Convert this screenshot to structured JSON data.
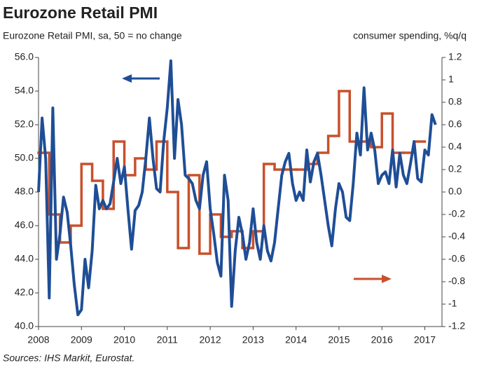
{
  "chart_data": {
    "type": "line",
    "title": "Eurozone Retail PMI",
    "subtitle": "Eurozone Retail PMI, sa, 50 = no change",
    "y2label": "consumer spending, %q/q",
    "source": "Sources: IHS Markit, Eurostat.",
    "xlim": [
      2008,
      2017.4
    ],
    "xticks": [
      2008,
      2009,
      2010,
      2011,
      2012,
      2013,
      2014,
      2015,
      2016,
      2017
    ],
    "ylim": [
      40,
      56
    ],
    "yticks": [
      {
        "value": 40,
        "label": "40.0"
      },
      {
        "value": 42,
        "label": "42.0"
      },
      {
        "value": 44,
        "label": "44.0"
      },
      {
        "value": 46,
        "label": "46.0"
      },
      {
        "value": 48,
        "label": "48.0"
      },
      {
        "value": 50,
        "label": "50.0"
      },
      {
        "value": 52,
        "label": "52.0"
      },
      {
        "value": 54,
        "label": "54.0"
      },
      {
        "value": 56,
        "label": "56.0"
      }
    ],
    "y2lim": [
      -1.2,
      1.2
    ],
    "y2ticks": [
      -1.2,
      -1,
      -0.8,
      -0.6,
      -0.4,
      -0.2,
      {
        "value": 0,
        "label": "0.0"
      },
      0.2,
      0.4,
      0.6,
      0.8,
      1,
      1.2
    ],
    "grid": false,
    "series": [
      {
        "color": "#1f4e96",
        "axis": "y",
        "x": [
          2008,
          2008.083,
          2008.167,
          2008.25,
          2008.333,
          2008.417,
          2008.5,
          2008.583,
          2008.667,
          2008.75,
          2008.833,
          2008.917,
          2009,
          2009.083,
          2009.167,
          2009.25,
          2009.333,
          2009.417,
          2009.5,
          2009.583,
          2009.667,
          2009.75,
          2009.833,
          2009.917,
          2010,
          2010.083,
          2010.167,
          2010.25,
          2010.333,
          2010.417,
          2010.5,
          2010.583,
          2010.667,
          2010.75,
          2010.833,
          2010.917,
          2011,
          2011.083,
          2011.167,
          2011.25,
          2011.333,
          2011.417,
          2011.5,
          2011.583,
          2011.667,
          2011.75,
          2011.833,
          2011.917,
          2012,
          2012.083,
          2012.167,
          2012.25,
          2012.333,
          2012.417,
          2012.5,
          2012.583,
          2012.667,
          2012.75,
          2012.833,
          2012.917,
          2013,
          2013.083,
          2013.167,
          2013.25,
          2013.333,
          2013.417,
          2013.5,
          2013.583,
          2013.667,
          2013.75,
          2013.833,
          2013.917,
          2014,
          2014.083,
          2014.167,
          2014.25,
          2014.333,
          2014.417,
          2014.5,
          2014.583,
          2014.667,
          2014.75,
          2014.833,
          2014.917,
          2015,
          2015.083,
          2015.167,
          2015.25,
          2015.333,
          2015.417,
          2015.5,
          2015.583,
          2015.667,
          2015.75,
          2015.833,
          2015.917,
          2016,
          2016.083,
          2016.167,
          2016.25,
          2016.333,
          2016.417,
          2016.5,
          2016.583,
          2016.667,
          2016.75,
          2016.833,
          2016.917,
          2017,
          2017.083,
          2017.167,
          2017.25
        ],
        "values": [
          48.0,
          52.4,
          50.0,
          41.7,
          53.0,
          44.0,
          45.5,
          47.7,
          46.8,
          44.8,
          42.5,
          40.7,
          41.0,
          44.0,
          42.3,
          44.5,
          48.4,
          47.0,
          47.5,
          47.0,
          47.3,
          48.6,
          50.0,
          48.5,
          49.5,
          47.0,
          44.6,
          46.9,
          47.2,
          48.0,
          50.0,
          52.4,
          50.0,
          48.2,
          48.0,
          51.0,
          53.0,
          55.8,
          50.0,
          53.5,
          52.0,
          49.0,
          48.8,
          48.5,
          47.5,
          47.0,
          49.0,
          49.8,
          47.0,
          45.5,
          43.8,
          43.0,
          49.0,
          47.5,
          41.2,
          44.5,
          46.5,
          45.5,
          44.0,
          45.0,
          47.0,
          45.0,
          44.0,
          46.0,
          44.5,
          43.9,
          45.0,
          47.0,
          49.0,
          49.8,
          50.3,
          48.5,
          47.5,
          48.0,
          47.5,
          50.5,
          48.6,
          49.8,
          50.3,
          49.0,
          47.5,
          46.0,
          44.8,
          47.0,
          48.5,
          48.0,
          46.5,
          46.3,
          48.5,
          51.5,
          50.2,
          54.2,
          50.5,
          51.5,
          50.5,
          48.5,
          49.0,
          49.2,
          48.5,
          50.5,
          48.3,
          50.3,
          49.0,
          48.5,
          49.7,
          51.0,
          48.8,
          48.6,
          50.5,
          50.2,
          52.6,
          52.0
        ]
      },
      {
        "color": "#c8502c",
        "axis": "y2",
        "step": true,
        "x": [
          2008,
          2008.25,
          2008.5,
          2008.75,
          2009,
          2009.25,
          2009.5,
          2009.75,
          2010,
          2010.25,
          2010.5,
          2010.75,
          2011,
          2011.25,
          2011.5,
          2011.75,
          2012,
          2012.25,
          2012.5,
          2012.75,
          2013,
          2013.25,
          2013.5,
          2013.75,
          2014,
          2014.25,
          2014.5,
          2014.75,
          2015,
          2015.25,
          2015.5,
          2015.75,
          2016,
          2016.25,
          2016.5,
          2016.75
        ],
        "values": [
          0.35,
          -0.2,
          -0.45,
          -0.3,
          0.25,
          0.1,
          -0.15,
          0.45,
          0.15,
          0.3,
          0.2,
          0.45,
          0.0,
          -0.5,
          0.15,
          -0.55,
          -0.2,
          -0.4,
          -0.35,
          -0.5,
          -0.35,
          0.25,
          0.2,
          0.2,
          0.2,
          0.25,
          0.35,
          0.5,
          0.9,
          0.45,
          0.45,
          0.4,
          0.7,
          0.35,
          0.35,
          0.45
        ]
      }
    ]
  }
}
